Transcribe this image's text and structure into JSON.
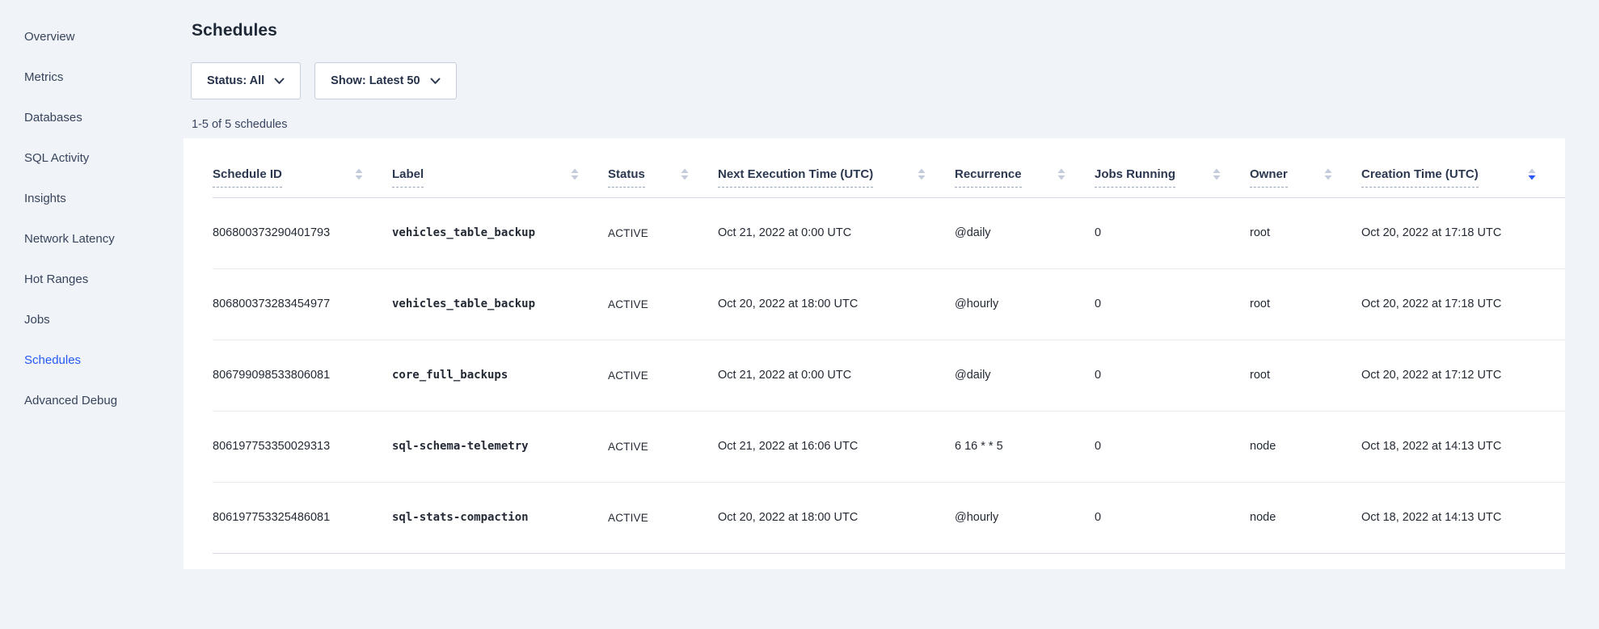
{
  "page": {
    "title": "Schedules"
  },
  "sidebar": {
    "items": [
      {
        "label": "Overview",
        "active": false
      },
      {
        "label": "Metrics",
        "active": false
      },
      {
        "label": "Databases",
        "active": false
      },
      {
        "label": "SQL Activity",
        "active": false
      },
      {
        "label": "Insights",
        "active": false
      },
      {
        "label": "Network Latency",
        "active": false
      },
      {
        "label": "Hot Ranges",
        "active": false
      },
      {
        "label": "Jobs",
        "active": false
      },
      {
        "label": "Schedules",
        "active": true
      },
      {
        "label": "Advanced Debug",
        "active": false
      }
    ]
  },
  "filters": {
    "status_label": "Status: All",
    "show_label": "Show: Latest 50"
  },
  "results_count": "1-5 of 5 schedules",
  "table": {
    "columns": [
      {
        "label": "Schedule ID",
        "sort": "none"
      },
      {
        "label": "Label",
        "sort": "none"
      },
      {
        "label": "Status",
        "sort": "none"
      },
      {
        "label": "Next Execution Time (UTC)",
        "sort": "none"
      },
      {
        "label": "Recurrence",
        "sort": "none"
      },
      {
        "label": "Jobs Running",
        "sort": "none"
      },
      {
        "label": "Owner",
        "sort": "none"
      },
      {
        "label": "Creation Time (UTC)",
        "sort": "desc"
      }
    ],
    "rows": [
      [
        "806800373290401793",
        "vehicles_table_backup",
        "ACTIVE",
        "Oct 21, 2022 at 0:00 UTC",
        "@daily",
        "0",
        "root",
        "Oct 20, 2022 at 17:18 UTC"
      ],
      [
        "806800373283454977",
        "vehicles_table_backup",
        "ACTIVE",
        "Oct 20, 2022 at 18:00 UTC",
        "@hourly",
        "0",
        "root",
        "Oct 20, 2022 at 17:18 UTC"
      ],
      [
        "806799098533806081",
        "core_full_backups",
        "ACTIVE",
        "Oct 21, 2022 at 0:00 UTC",
        "@daily",
        "0",
        "root",
        "Oct 20, 2022 at 17:12 UTC"
      ],
      [
        "806197753350029313",
        "sql-schema-telemetry",
        "ACTIVE",
        "Oct 21, 2022 at 16:06 UTC",
        "6 16 * * 5",
        "0",
        "node",
        "Oct 18, 2022 at 14:13 UTC"
      ],
      [
        "806197753325486081",
        "sql-stats-compaction",
        "ACTIVE",
        "Oct 20, 2022 at 18:00 UTC",
        "@hourly",
        "0",
        "node",
        "Oct 18, 2022 at 14:13 UTC"
      ]
    ]
  },
  "icons": {
    "sort_icon": "sort-arrows-icon",
    "chevron": "chevron-down-icon"
  },
  "colors": {
    "accent_blue": "#2458f7",
    "sort_inactive": "#c3cbdd",
    "background": "#f0f4f8",
    "card": "#ffffff",
    "text_dark": "#242a35",
    "header_text": "#2b3850",
    "sidebar_text": "#38445c"
  }
}
